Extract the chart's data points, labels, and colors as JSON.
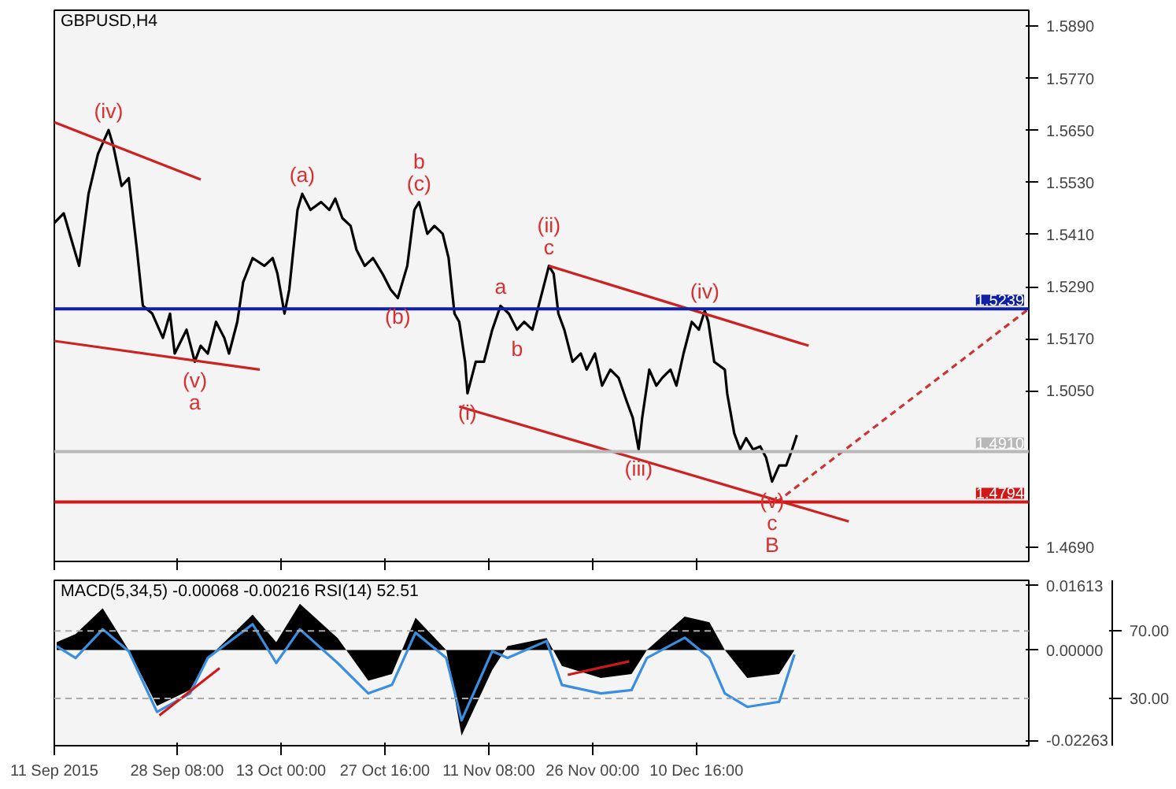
{
  "chart_data": [
    {
      "type": "line",
      "title": "GBPUSD,H4",
      "xlim": [
        "2015-09-11T00:00",
        "2016-01-26T14:00"
      ],
      "ylim": [
        1.4657,
        1.5927
      ],
      "xticks": [
        {
          "value": "2015-09-11T00:00",
          "label": null
        },
        {
          "value": "2015-09-28T08:00",
          "label": null
        },
        {
          "value": "2015-10-13T00:00",
          "label": null
        },
        {
          "value": "2015-10-27T16:00",
          "label": null
        },
        {
          "value": "2015-11-11T08:00",
          "label": null
        },
        {
          "value": "2015-11-26T00:00",
          "label": null
        },
        {
          "value": "2015-12-10T16:00",
          "label": null
        }
      ],
      "yticks": [
        {
          "value": 1.589,
          "label": "1.5890"
        },
        {
          "value": 1.577,
          "label": "1.5770"
        },
        {
          "value": 1.565,
          "label": "1.5650"
        },
        {
          "value": 1.553,
          "label": "1.5530"
        },
        {
          "value": 1.541,
          "label": "1.5410"
        },
        {
          "value": 1.529,
          "label": "1.5290"
        },
        {
          "value": 1.517,
          "label": "1.5170"
        },
        {
          "value": 1.505,
          "label": "1.5050"
        },
        {
          "value": 1.469,
          "label": "1.4690"
        }
      ],
      "tick_labels": "y",
      "grid": false,
      "series": [
        {
          "color": "#000000",
          "x": [
            "2015-09-11T00:00",
            "2015-09-12T08:00",
            "2015-09-13T20:00",
            "2015-09-14T12:00",
            "2015-09-15T20:00",
            "2015-09-17T04:00",
            "2015-09-18T16:00",
            "2015-09-19T08:00",
            "2015-09-20T12:00",
            "2015-09-21T12:00",
            "2015-09-22T16:00",
            "2015-09-23T12:00",
            "2015-09-24T20:00",
            "2015-09-26T08:00",
            "2015-09-27T08:00",
            "2015-09-28T00:00",
            "2015-09-29T16:00",
            "2015-09-30T20:00",
            "2015-10-01T16:00",
            "2015-10-02T16:00",
            "2015-10-03T20:00",
            "2015-10-05T00:00",
            "2015-10-05T16:00",
            "2015-10-06T20:00",
            "2015-10-07T16:00",
            "2015-10-09T00:00",
            "2015-10-10T16:00",
            "2015-10-11T20:00",
            "2015-10-12T12:00",
            "2015-10-13T12:00",
            "2015-10-14T04:00",
            "2015-10-15T08:00",
            "2015-10-16T00:00",
            "2015-10-17T04:00",
            "2015-10-18T16:00",
            "2015-10-19T20:00",
            "2015-10-20T16:00",
            "2015-10-21T16:00",
            "2015-10-22T20:00",
            "2015-10-23T16:00",
            "2015-10-24T20:00",
            "2015-10-26T00:00",
            "2015-10-27T08:00",
            "2015-10-28T12:00",
            "2015-10-29T12:00",
            "2015-10-30T20:00",
            "2015-10-31T20:00",
            "2015-11-01T12:00",
            "2015-11-02T16:00",
            "2015-11-03T16:00",
            "2015-11-04T20:00",
            "2015-11-05T16:00",
            "2015-11-06T12:00",
            "2015-11-07T04:00",
            "2015-11-08T00:00",
            "2015-11-08T08:00",
            "2015-11-09T12:00",
            "2015-11-10T16:00",
            "2015-11-11T20:00",
            "2015-11-13T00:00",
            "2015-11-14T04:00",
            "2015-11-15T08:00",
            "2015-11-16T08:00",
            "2015-11-17T12:00",
            "2015-11-18T16:00",
            "2015-11-19T20:00",
            "2015-11-20T12:00",
            "2015-11-21T04:00",
            "2015-11-22T00:00",
            "2015-11-23T04:00",
            "2015-11-24T08:00",
            "2015-11-25T04:00",
            "2015-11-26T08:00",
            "2015-11-27T08:00",
            "2015-11-28T12:00",
            "2015-11-29T16:00",
            "2015-11-30T20:00",
            "2015-12-01T16:00",
            "2015-12-02T12:00",
            "2015-12-03T00:00",
            "2015-12-04T00:00",
            "2015-12-05T00:00",
            "2015-12-05T20:00",
            "2015-12-07T00:00",
            "2015-12-07T20:00",
            "2015-12-08T20:00",
            "2015-12-10T00:00",
            "2015-12-11T00:00",
            "2015-12-11T20:00",
            "2015-12-12T08:00",
            "2015-12-13T04:00",
            "2015-12-14T16:00",
            "2015-12-15T00:00",
            "2015-12-16T00:00",
            "2015-12-16T20:00",
            "2015-12-17T16:00",
            "2015-12-18T16:00",
            "2015-12-19T16:00",
            "2015-12-20T12:00",
            "2015-12-21T08:00",
            "2015-12-22T08:00",
            "2015-12-23T08:00",
            "2015-12-24T04:00",
            "2015-12-24T20:00"
          ],
          "values": [
            1.5437,
            1.5459,
            1.5375,
            1.5338,
            1.5504,
            1.5596,
            1.5651,
            1.5614,
            1.5522,
            1.554,
            1.5375,
            1.5246,
            1.5228,
            1.5172,
            1.5228,
            1.5136,
            1.5191,
            1.5117,
            1.5154,
            1.5136,
            1.5209,
            1.5172,
            1.5136,
            1.5209,
            1.5301,
            1.5356,
            1.5338,
            1.5356,
            1.532,
            1.5228,
            1.5283,
            1.5467,
            1.5504,
            1.5467,
            1.5485,
            1.5467,
            1.5493,
            1.5448,
            1.543,
            1.5375,
            1.5338,
            1.5356,
            1.532,
            1.5283,
            1.5264,
            1.5338,
            1.5467,
            1.5485,
            1.5412,
            1.543,
            1.5412,
            1.5356,
            1.5228,
            1.5209,
            1.5117,
            1.5044,
            1.5117,
            1.5117,
            1.5191,
            1.5246,
            1.5228,
            1.5191,
            1.5209,
            1.5191,
            1.5264,
            1.5338,
            1.532,
            1.5228,
            1.5191,
            1.5117,
            1.5136,
            1.5099,
            1.5136,
            1.5062,
            1.5099,
            1.508,
            1.5025,
            1.4988,
            1.4915,
            1.4988,
            1.5099,
            1.5062,
            1.508,
            1.5099,
            1.5062,
            1.5136,
            1.5209,
            1.5191,
            1.5235,
            1.5209,
            1.5117,
            1.5099,
            1.5044,
            1.4952,
            1.4915,
            1.4941,
            1.4915,
            1.4922,
            1.4896,
            1.4841,
            1.4878,
            1.4878,
            1.4915,
            1.4948
          ]
        },
        {
          "type": "line",
          "color": "#cc2222",
          "x": [
            "2015-09-11T00:00",
            "2015-10-01T16:00"
          ],
          "values": [
            1.5669,
            1.5537
          ]
        },
        {
          "type": "line",
          "color": "#cc2222",
          "x": [
            "2015-09-11T00:00",
            "2015-10-10T00:00"
          ],
          "values": [
            1.5165,
            1.5099
          ]
        },
        {
          "type": "line",
          "color": "#cc2222",
          "x": [
            "2015-11-19T20:00",
            "2015-12-26T12:00"
          ],
          "values": [
            1.5338,
            1.5154
          ]
        },
        {
          "type": "line",
          "color": "#cc2222",
          "x": [
            "2015-11-07T04:00",
            "2016-01-01T04:00"
          ],
          "values": [
            1.5014,
            1.4749
          ]
        },
        {
          "type": "line",
          "color": "#cc3333",
          "line_style": "dashed",
          "x": [
            "2015-12-22T00:00",
            "2016-01-26T14:00"
          ],
          "values": [
            1.4794,
            1.5239
          ]
        }
      ],
      "ref_lines": [
        {
          "axis": "y",
          "value": 1.5239,
          "label": "1.5239",
          "color": "#1020a0"
        },
        {
          "axis": "y",
          "value": 1.491,
          "label": "1.4910",
          "color": "#b8b8b8"
        },
        {
          "axis": "y",
          "value": 1.4794,
          "label": "1.4794",
          "color": "#d01818"
        }
      ],
      "annotations": [
        {
          "text": "(iv)",
          "x": "2015-09-18T16:00",
          "y": 1.5651
        },
        {
          "text": "(v)",
          "x": "2015-09-30T20:00",
          "y": 1.5117
        },
        {
          "text": "a",
          "x": "2015-09-30T20:00",
          "y": 1.5117
        },
        {
          "text": "(a)",
          "x": "2015-10-16T00:00",
          "y": 1.5504
        },
        {
          "text": "(b)",
          "x": "2015-10-29T12:00",
          "y": 1.5264
        },
        {
          "text": "(c)",
          "x": "2015-11-01T12:00",
          "y": 1.5485
        },
        {
          "text": "b",
          "x": "2015-11-01T12:00",
          "y": 1.5485
        },
        {
          "text": "(i)",
          "x": "2015-11-08T08:00",
          "y": 1.5044
        },
        {
          "text": "a",
          "x": "2015-11-13T00:00",
          "y": 1.5246
        },
        {
          "text": "b",
          "x": "2015-11-15T08:00",
          "y": 1.5191
        },
        {
          "text": "c",
          "x": "2015-11-19T20:00",
          "y": 1.5338
        },
        {
          "text": "(ii)",
          "x": "2015-11-19T20:00",
          "y": 1.5338
        },
        {
          "text": "(iii)",
          "x": "2015-12-02T12:00",
          "y": 1.4915
        },
        {
          "text": "(iv)",
          "x": "2015-12-11T20:00",
          "y": 1.5235
        },
        {
          "text": "(v)",
          "x": "2015-12-21T08:00",
          "y": 1.4841
        },
        {
          "text": "c",
          "x": "2015-12-21T08:00",
          "y": 1.4841
        },
        {
          "text": "B",
          "x": "2015-12-21T08:00",
          "y": 1.4841
        }
      ]
    },
    {
      "type": "area",
      "title": "MACD(5,34,5) -0.00068 -0.00216 RSI(14) 52.51",
      "xlim": [
        "2015-09-11T00:00",
        "2016-01-26T14:00"
      ],
      "ylim": [
        -0.024,
        0.0175
      ],
      "y2lim": [
        2,
        100
      ],
      "xticks": [
        {
          "value": "2015-09-11T00:00",
          "label": "11 Sep 2015"
        },
        {
          "value": "2015-09-28T08:00",
          "label": "28 Sep 08:00"
        },
        {
          "value": "2015-10-13T00:00",
          "label": "13 Oct 00:00"
        },
        {
          "value": "2015-10-27T16:00",
          "label": "27 Oct 16:00"
        },
        {
          "value": "2015-11-11T08:00",
          "label": "11 Nov 08:00"
        },
        {
          "value": "2015-11-26T00:00",
          "label": "26 Nov 00:00"
        },
        {
          "value": "2015-12-10T16:00",
          "label": "10 Dec 16:00"
        }
      ],
      "yticks": [
        {
          "value": 0.01613,
          "label": "0.01613"
        },
        {
          "value": 0,
          "label": "0.00000"
        },
        {
          "value": -0.02263,
          "label": "-0.02263"
        }
      ],
      "y2ticks": [
        {
          "value": 70,
          "label": "70.00"
        },
        {
          "value": 30,
          "label": "30.00"
        }
      ],
      "grid": false,
      "x": [
        "2015-09-11T08:00",
        "2015-09-14T00:00",
        "2015-09-17T20:00",
        "2015-09-21T12:00",
        "2015-09-25T12:00",
        "2015-09-30T04:00",
        "2015-10-02T16:00",
        "2015-10-09T00:00",
        "2015-10-12T08:00",
        "2015-10-15T16:00",
        "2015-10-21T00:00",
        "2015-10-25T08:00",
        "2015-10-28T16:00",
        "2015-11-01T00:00",
        "2015-11-05T08:00",
        "2015-11-07T12:00",
        "2015-11-11T20:00",
        "2015-11-14T00:00",
        "2015-11-19T12:00",
        "2015-11-21T16:00",
        "2015-11-27T04:00",
        "2015-12-01T12:00",
        "2015-12-03T16:00",
        "2015-12-09T00:00",
        "2015-12-12T12:00",
        "2015-12-14T16:00",
        "2015-12-17T20:00",
        "2015-12-22T08:00",
        "2015-12-24T12:00"
      ],
      "series": [
        {
          "color": "#000000",
          "values": [
            0.002,
            0.004,
            0.0105,
            0,
            -0.014,
            -0.01,
            -0.002,
            0.0089,
            0.002,
            0.0116,
            0.003,
            -0.0077,
            -0.006,
            0.0081,
            0,
            -0.0215,
            -0.005,
            0.001,
            0.003,
            -0.004,
            -0.007,
            -0.006,
            0,
            0.0084,
            0.007,
            0,
            -0.007,
            -0.006,
            0
          ]
        },
        {
          "type": "line",
          "axis": "y2",
          "color": "#3a8ee0",
          "values": [
            61,
            54,
            71,
            58,
            22,
            33,
            54,
            74,
            51,
            71,
            51,
            33,
            38,
            69,
            54,
            17,
            58,
            54,
            64,
            38,
            33,
            35,
            54,
            66,
            54,
            33,
            25,
            28,
            56
          ]
        },
        {
          "type": "line",
          "axis": "y2",
          "color": "#d01818",
          "x": [
            "2015-09-25T20:00",
            "2015-10-04T08:00"
          ],
          "values": [
            20,
            48
          ]
        },
        {
          "type": "line",
          "axis": "y2",
          "color": "#d01818",
          "x": [
            "2015-11-22T12:00",
            "2015-12-01T04:00"
          ],
          "values": [
            44,
            52
          ]
        }
      ],
      "ref_lines": [
        {
          "axis": "y2",
          "value": 70,
          "color": "#aaaaaa",
          "line_style": "dashed"
        },
        {
          "axis": "y2",
          "value": 30,
          "color": "#aaaaaa",
          "line_style": "dashed"
        }
      ]
    }
  ]
}
